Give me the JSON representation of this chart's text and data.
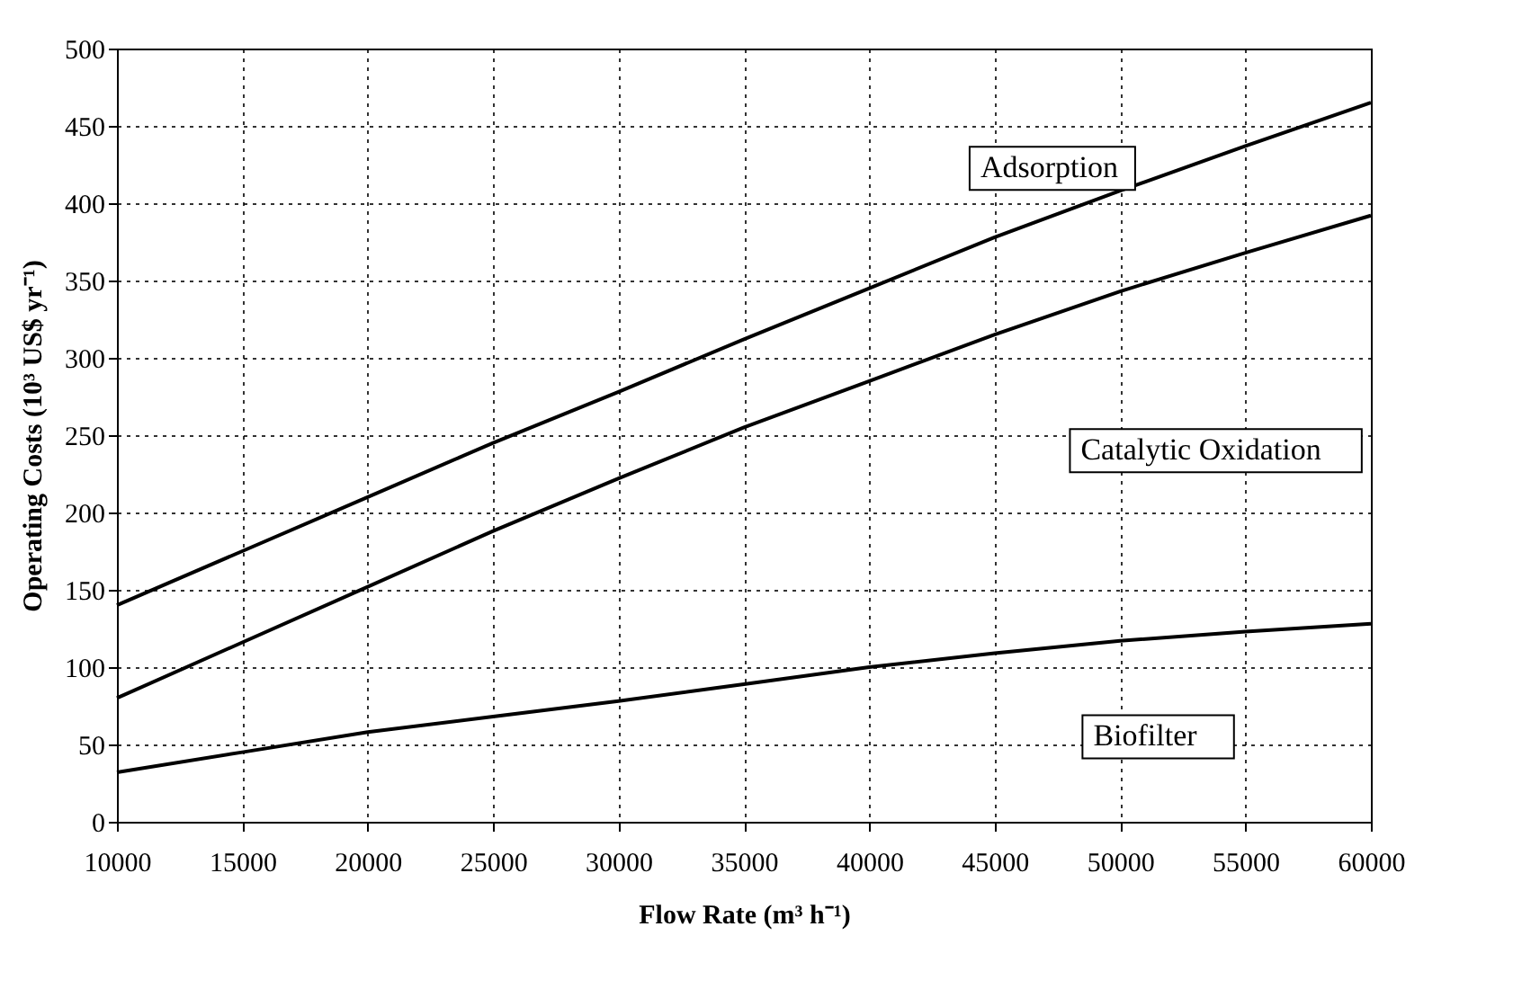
{
  "chart_data": {
    "type": "line",
    "xlabel": "Flow Rate (m³ h⁻¹)",
    "ylabel": "Operating Costs (10³ US$ yr⁻¹)",
    "x": [
      10000,
      15000,
      20000,
      25000,
      30000,
      35000,
      40000,
      45000,
      50000,
      55000,
      60000
    ],
    "series": [
      {
        "name": "Adsorption",
        "color": "#000000",
        "values": [
          140,
          175,
          210,
          245,
          278,
          312,
          345,
          378,
          408,
          437,
          465
        ]
      },
      {
        "name": "Catalytic Oxidation",
        "color": "#000000",
        "values": [
          80,
          116,
          152,
          188,
          222,
          255,
          285,
          315,
          343,
          368,
          392
        ]
      },
      {
        "name": "Biofilter",
        "color": "#000000",
        "values": [
          32,
          45,
          58,
          68,
          78,
          89,
          100,
          109,
          117,
          123,
          128
        ]
      }
    ],
    "xlim": [
      10000,
      60000
    ],
    "xticks": [
      10000,
      15000,
      20000,
      25000,
      30000,
      35000,
      40000,
      45000,
      50000,
      55000,
      60000
    ],
    "ylim": [
      0,
      500
    ],
    "yticks": [
      0,
      50,
      100,
      150,
      200,
      250,
      300,
      350,
      400,
      450,
      500
    ],
    "grid": true,
    "line_style": "solid",
    "marker": "none"
  }
}
